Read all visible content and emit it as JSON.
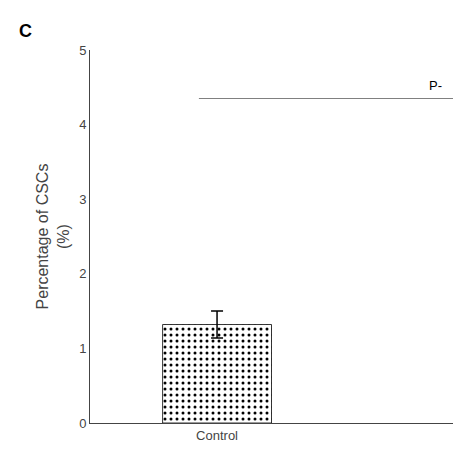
{
  "chart_data": {
    "type": "bar",
    "panel_label": "C",
    "categories": [
      "Control"
    ],
    "values": [
      1.32
    ],
    "errors": [
      0.18
    ],
    "ylabel": "Percentage of CSCs\n(%)",
    "ylim": [
      0,
      5
    ],
    "yticks": [
      0,
      1,
      2,
      3,
      4,
      5
    ],
    "color": "#c8c8c8",
    "significance": {
      "text": "P-",
      "y": 4.35
    },
    "grid": false
  }
}
